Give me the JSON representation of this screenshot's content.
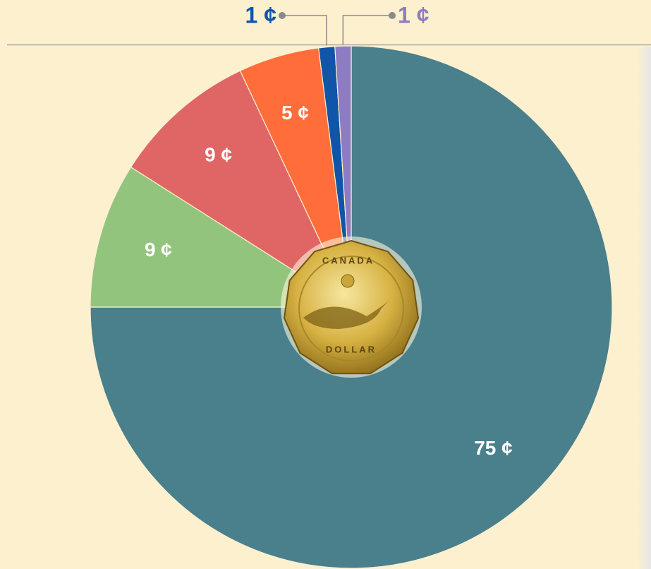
{
  "chart_data": {
    "type": "pie",
    "values": [
      75,
      9,
      9,
      5,
      1,
      1
    ],
    "value_labels": [
      "75 ¢",
      "9 ¢",
      "9 ¢",
      "5 ¢",
      "1 ¢",
      "1 ¢"
    ],
    "colors": [
      "#4a7f8c",
      "#93c47d",
      "#e06666",
      "#ff6d3a",
      "#1155a8",
      "#8e7cc3"
    ],
    "start_angle": 0,
    "direction": "clockwise"
  },
  "coin": {
    "top_text": "CANADA",
    "bottom_text": "DOLLAR"
  }
}
